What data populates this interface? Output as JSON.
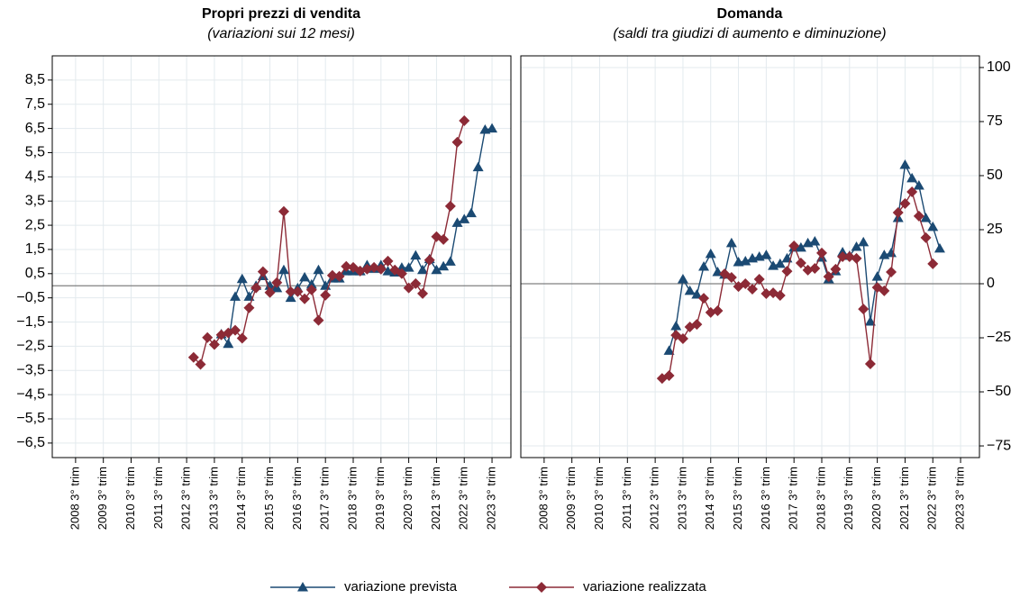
{
  "chart_data": [
    {
      "type": "line",
      "title": "Propri prezzi di vendita",
      "subtitle": "(variazioni sui 12 mesi)",
      "xlim": [
        2007.66,
        2024.18
      ],
      "xticks": [
        {
          "value": 2008.5,
          "label": "2008 3° trim"
        },
        {
          "value": 2009.5,
          "label": "2009 3° trim"
        },
        {
          "value": 2010.5,
          "label": "2010 3° trim"
        },
        {
          "value": 2011.5,
          "label": "2011 3° trim"
        },
        {
          "value": 2012.5,
          "label": "2012 3° trim"
        },
        {
          "value": 2013.5,
          "label": "2013 3° trim"
        },
        {
          "value": 2014.5,
          "label": "2014 3° trim"
        },
        {
          "value": 2015.5,
          "label": "2015 3° trim"
        },
        {
          "value": 2016.5,
          "label": "2016 3° trim"
        },
        {
          "value": 2017.5,
          "label": "2017 3° trim"
        },
        {
          "value": 2018.5,
          "label": "2018 3° trim"
        },
        {
          "value": 2019.5,
          "label": "2019 3° trim"
        },
        {
          "value": 2020.5,
          "label": "2020 3° trim"
        },
        {
          "value": 2021.5,
          "label": "2021 3° trim"
        },
        {
          "value": 2022.5,
          "label": "2022 3° trim"
        },
        {
          "value": 2023.5,
          "label": "2023 3° trim"
        }
      ],
      "ylim": [
        -7.1,
        9.5
      ],
      "yticks": [
        {
          "value": 8.5,
          "label": "8,5"
        },
        {
          "value": 7.5,
          "label": "7,5"
        },
        {
          "value": 6.5,
          "label": "6,5"
        },
        {
          "value": 5.5,
          "label": "5,5"
        },
        {
          "value": 4.5,
          "label": "4,5"
        },
        {
          "value": 3.5,
          "label": "3,5"
        },
        {
          "value": 2.5,
          "label": "2,5"
        },
        {
          "value": 1.5,
          "label": "1,5"
        },
        {
          "value": 0.5,
          "label": "0,5"
        },
        {
          "value": -0.5,
          "label": "−0,5"
        },
        {
          "value": -1.5,
          "label": "−1,5"
        },
        {
          "value": -2.5,
          "label": "−2,5"
        },
        {
          "value": -3.5,
          "label": "−3,5"
        },
        {
          "value": -4.5,
          "label": "−4,5"
        },
        {
          "value": -5.5,
          "label": "−5,5"
        },
        {
          "value": -6.5,
          "label": "−6,5"
        }
      ],
      "grid": true,
      "series": [
        {
          "name": "variazione prevista",
          "color": "#1b4a73",
          "marker": "triangle",
          "x": [
            2013.75,
            2014,
            2014.25,
            2014.5,
            2014.75,
            2015,
            2015.25,
            2015.5,
            2015.75,
            2016,
            2016.25,
            2016.5,
            2016.75,
            2017,
            2017.25,
            2017.5,
            2017.75,
            2018,
            2018.25,
            2018.5,
            2018.75,
            2019,
            2019.25,
            2019.5,
            2019.75,
            2020,
            2020.25,
            2020.5,
            2020.75,
            2021,
            2021.25,
            2021.5,
            2021.75,
            2022,
            2022.25,
            2022.5,
            2022.75,
            2023,
            2023.25,
            2023.5
          ],
          "values": [
            -2.0,
            -2.4,
            -0.45,
            0.28,
            -0.45,
            0.0,
            0.4,
            0.0,
            -0.1,
            0.65,
            -0.5,
            -0.1,
            0.35,
            0.05,
            0.65,
            0.0,
            0.3,
            0.3,
            0.6,
            0.6,
            0.6,
            0.85,
            0.7,
            0.85,
            0.6,
            0.55,
            0.75,
            0.75,
            1.25,
            0.65,
            1.1,
            0.65,
            0.8,
            1.0,
            2.6,
            2.75,
            3.0,
            4.9,
            6.45,
            6.5
          ]
        },
        {
          "name": "variazione realizzata",
          "color": "#8c2a36",
          "marker": "diamond",
          "x": [
            2012.75,
            2013,
            2013.25,
            2013.5,
            2013.75,
            2014,
            2014.25,
            2014.5,
            2014.75,
            2015,
            2015.25,
            2015.5,
            2015.75,
            2016,
            2016.25,
            2016.5,
            2016.75,
            2017,
            2017.25,
            2017.5,
            2017.75,
            2018,
            2018.25,
            2018.5,
            2018.75,
            2019,
            2019.25,
            2019.5,
            2019.75,
            2020,
            2020.25,
            2020.5,
            2020.75,
            2021,
            2021.25,
            2021.5,
            2021.75,
            2022,
            2022.25,
            2022.5
          ],
          "values": [
            -2.96,
            -3.25,
            -2.14,
            -2.43,
            -2.03,
            -1.95,
            -1.84,
            -2.17,
            -0.91,
            -0.09,
            0.58,
            -0.28,
            0.13,
            3.07,
            -0.24,
            -0.24,
            -0.54,
            -0.17,
            -1.43,
            -0.39,
            0.43,
            0.39,
            0.8,
            0.76,
            0.61,
            0.69,
            0.76,
            0.69,
            1.02,
            0.65,
            0.5,
            -0.09,
            0.09,
            -0.32,
            1.06,
            2.03,
            1.91,
            3.29,
            5.93,
            6.82
          ]
        }
      ]
    },
    {
      "type": "line",
      "title": "Domanda",
      "subtitle": "(saldi tra giudizi di aumento e diminuzione)",
      "xlim": [
        2007.66,
        2024.18
      ],
      "xticks": [
        {
          "value": 2008.5,
          "label": "2008 3° trim"
        },
        {
          "value": 2009.5,
          "label": "2009 3° trim"
        },
        {
          "value": 2010.5,
          "label": "2010 3° trim"
        },
        {
          "value": 2011.5,
          "label": "2011 3° trim"
        },
        {
          "value": 2012.5,
          "label": "2012 3° trim"
        },
        {
          "value": 2013.5,
          "label": "2013 3° trim"
        },
        {
          "value": 2014.5,
          "label": "2014 3° trim"
        },
        {
          "value": 2015.5,
          "label": "2015 3° trim"
        },
        {
          "value": 2016.5,
          "label": "2016 3° trim"
        },
        {
          "value": 2017.5,
          "label": "2017 3° trim"
        },
        {
          "value": 2018.5,
          "label": "2018 3° trim"
        },
        {
          "value": 2019.5,
          "label": "2019 3° trim"
        },
        {
          "value": 2020.5,
          "label": "2020 3° trim"
        },
        {
          "value": 2021.5,
          "label": "2021 3° trim"
        },
        {
          "value": 2022.5,
          "label": "2022 3° trim"
        },
        {
          "value": 2023.5,
          "label": "2023 3° trim"
        }
      ],
      "ylim": [
        -80.4,
        105.4
      ],
      "yticks": [
        100,
        75,
        50,
        25,
        0,
        {
          "value": -25,
          "label": "−25"
        },
        {
          "value": -50,
          "label": "−50"
        },
        {
          "value": -75,
          "label": "−75"
        }
      ],
      "grid": true,
      "series": [
        {
          "color": "#1b4a73",
          "marker": "triangle",
          "x": [
            2013,
            2013.25,
            2013.5,
            2013.75,
            2014,
            2014.25,
            2014.5,
            2014.75,
            2015,
            2015.25,
            2015.5,
            2015.75,
            2016,
            2016.25,
            2016.5,
            2016.75,
            2017,
            2017.25,
            2017.5,
            2017.75,
            2018,
            2018.25,
            2018.5,
            2018.75,
            2019,
            2019.25,
            2019.5,
            2019.75,
            2020,
            2020.25,
            2020.5,
            2020.75,
            2021,
            2021.25,
            2021.5,
            2021.75,
            2022,
            2022.25,
            2022.5,
            2022.75
          ],
          "values": [
            -31,
            -19.6,
            2.1,
            -3.3,
            -5,
            7.9,
            13.8,
            5.4,
            4.2,
            18.8,
            10,
            10.4,
            11.7,
            12.5,
            13.3,
            8.3,
            9.2,
            11.7,
            16.7,
            16.7,
            18.8,
            19.6,
            12.1,
            2.1,
            5.8,
            14.6,
            12.9,
            17.1,
            19.2,
            -17.5,
            3.3,
            13.3,
            14.2,
            30.4,
            55,
            48.8,
            45.4,
            30.4,
            26.3,
            16.3
          ]
        },
        {
          "color": "#8c2a36",
          "marker": "diamond",
          "x": [
            2012.75,
            2013,
            2013.25,
            2013.5,
            2013.75,
            2014,
            2014.25,
            2014.5,
            2014.75,
            2015,
            2015.25,
            2015.5,
            2015.75,
            2016,
            2016.25,
            2016.5,
            2016.75,
            2017,
            2017.25,
            2017.5,
            2017.75,
            2018,
            2018.25,
            2018.5,
            2018.75,
            2019,
            2019.25,
            2019.5,
            2019.75,
            2020,
            2020.25,
            2020.5,
            2020.75,
            2021,
            2021.25,
            2021.5,
            2021.75,
            2022,
            2022.25,
            2022.5
          ],
          "values": [
            -43.8,
            -42.5,
            -23.8,
            -25.4,
            -20,
            -18.8,
            -6.7,
            -13.3,
            -12.5,
            4.6,
            2.9,
            -1.3,
            0,
            -2.5,
            2.1,
            -4.6,
            -4.2,
            -5.4,
            5.8,
            17.5,
            9.6,
            6.3,
            7.1,
            14.2,
            3.3,
            6.7,
            12.5,
            12.5,
            11.7,
            -11.7,
            -37.1,
            -1.7,
            -3.3,
            5.4,
            32.9,
            37.1,
            42.5,
            31.3,
            21.3,
            9.2
          ]
        }
      ]
    }
  ]
}
